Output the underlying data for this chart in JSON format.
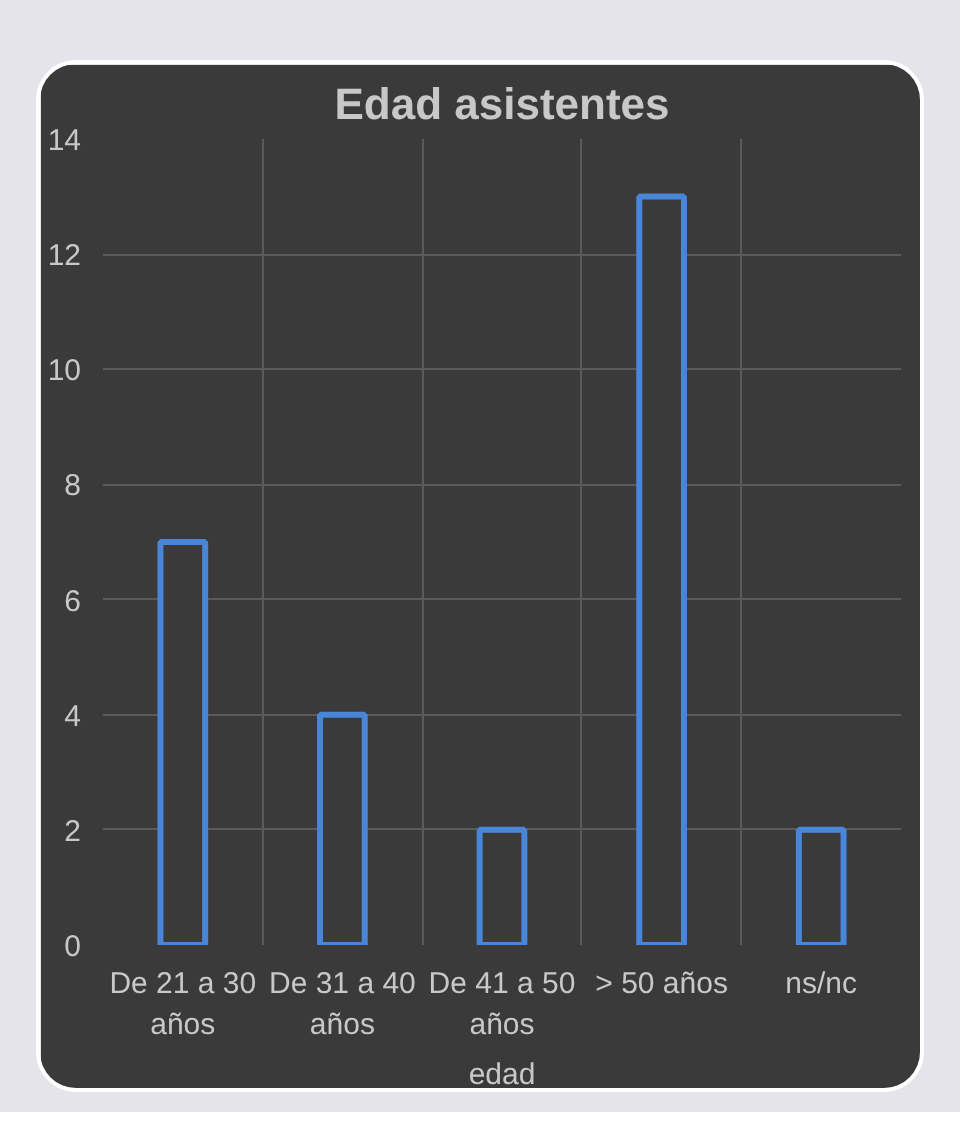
{
  "chart_data": {
    "type": "bar",
    "title": "Edad asistentes",
    "xlabel": "edad",
    "categories": [
      "De 21 a 30 años",
      "De 31 a 40 años",
      "De 41 a 50 años",
      "> 50 años",
      "ns/nc"
    ],
    "series": [
      {
        "color": "#4a86d8",
        "values": [
          7,
          4,
          2,
          13,
          2
        ]
      }
    ],
    "ylim": [
      0,
      14
    ],
    "yticks": [
      0,
      2,
      4,
      6,
      8,
      10,
      12,
      14
    ],
    "grid": true
  }
}
